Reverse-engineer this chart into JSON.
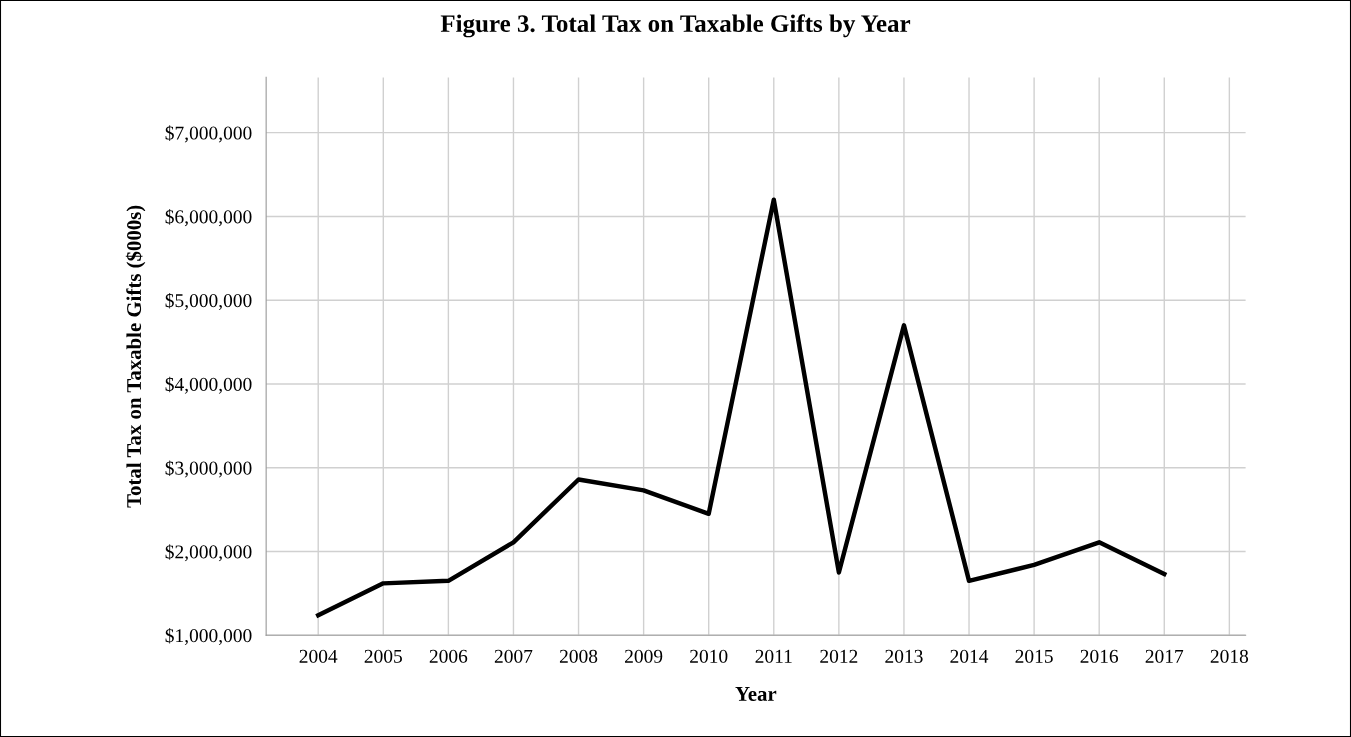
{
  "chart_data": {
    "type": "line",
    "title": "Figure 3. Total Tax on Taxable Gifts by Year",
    "xlabel": "Year",
    "ylabel": "Total Tax on Taxable Gifts ($000s)",
    "categories": [
      "2004",
      "2005",
      "2006",
      "2007",
      "2008",
      "2009",
      "2010",
      "2011",
      "2012",
      "2013",
      "2014",
      "2015",
      "2016",
      "2017",
      "2018"
    ],
    "series": [
      {
        "color": "#000000",
        "values": [
          1240000,
          1620000,
          1650000,
          2110000,
          2860000,
          2730000,
          2450000,
          6200000,
          1750000,
          4700000,
          1650000,
          1840000,
          2110000,
          1730000,
          null
        ]
      }
    ],
    "ylim": [
      1000000,
      7660000
    ],
    "yticks": [
      {
        "value": 1000000,
        "label": "$1,000,000"
      },
      {
        "value": 2000000,
        "label": "$2,000,000"
      },
      {
        "value": 3000000,
        "label": "$3,000,000"
      },
      {
        "value": 4000000,
        "label": "$4,000,000"
      },
      {
        "value": 5000000,
        "label": "$5,000,000"
      },
      {
        "value": 6000000,
        "label": "$6,000,000"
      },
      {
        "value": 7000000,
        "label": "$7,000,000"
      }
    ],
    "grid": true,
    "legend": false,
    "marker": "none",
    "line_style": "solid"
  }
}
